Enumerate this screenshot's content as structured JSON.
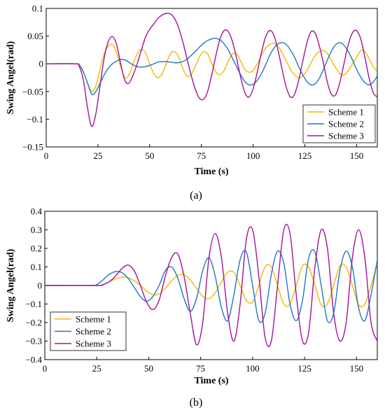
{
  "chart_data": [
    {
      "type": "line",
      "caption": "(a)",
      "xlabel": "Time (s)",
      "ylabel": "Swing Angel(rad)",
      "xlim": [
        0,
        160
      ],
      "ylim": [
        -0.15,
        0.1
      ],
      "xticks": [
        0,
        25,
        50,
        75,
        100,
        125,
        150
      ],
      "yticks": [
        -0.15,
        -0.1,
        -0.05,
        0,
        0.05,
        0.1
      ],
      "ytick_labels": [
        "−0.15",
        "−0.1",
        "−0.05",
        "0",
        "0.05",
        "0.1"
      ],
      "grid": false,
      "legend_position": "bottom-right",
      "series": [
        {
          "name": "Scheme 1",
          "color": "#f5b800",
          "x": [
            0,
            14,
            16,
            18,
            20,
            22,
            24,
            26,
            28,
            30,
            32,
            34,
            36,
            38,
            40,
            42,
            44,
            46,
            48,
            50,
            52,
            54,
            56,
            58,
            60,
            62,
            64,
            66,
            68,
            70,
            72,
            74,
            76,
            78,
            80,
            82,
            84,
            86,
            88,
            90,
            92,
            94,
            96,
            98,
            100,
            102,
            104,
            106,
            108,
            110,
            112,
            114,
            116,
            118,
            120,
            122,
            124,
            126,
            128,
            130,
            132,
            134,
            136,
            138,
            140,
            142,
            144,
            146,
            148,
            150,
            152,
            154,
            156,
            158,
            160
          ],
          "y": [
            0,
            0,
            -0.002,
            -0.015,
            -0.035,
            -0.05,
            -0.04,
            -0.01,
            0.018,
            0.032,
            0.035,
            0.02,
            -0.005,
            -0.025,
            -0.02,
            0.0,
            0.018,
            0.026,
            0.02,
            0.0,
            -0.018,
            -0.025,
            -0.018,
            0.0,
            0.018,
            0.022,
            0.012,
            -0.008,
            -0.022,
            -0.02,
            -0.005,
            0.012,
            0.022,
            0.018,
            0.0,
            -0.015,
            -0.02,
            -0.012,
            0.005,
            0.018,
            0.018,
            0.005,
            -0.01,
            -0.015,
            -0.012,
            0.0,
            0.015,
            0.028,
            0.035,
            0.037,
            0.032,
            0.02,
            0.005,
            -0.01,
            -0.02,
            -0.025,
            -0.022,
            -0.012,
            0.002,
            0.015,
            0.022,
            0.024,
            0.018,
            0.005,
            -0.008,
            -0.018,
            -0.02,
            -0.012,
            0.0,
            0.012,
            0.024,
            0.022,
            0.01,
            -0.005,
            -0.015
          ]
        },
        {
          "name": "Scheme 2",
          "color": "#1f77c4",
          "x": [
            0,
            14,
            16,
            18,
            20,
            22,
            24,
            26,
            28,
            30,
            32,
            34,
            36,
            38,
            40,
            42,
            44,
            46,
            48,
            50,
            52,
            54,
            56,
            58,
            60,
            62,
            64,
            66,
            68,
            70,
            72,
            74,
            76,
            78,
            80,
            82,
            84,
            86,
            88,
            90,
            92,
            94,
            96,
            98,
            100,
            102,
            104,
            106,
            108,
            110,
            112,
            114,
            116,
            118,
            120,
            122,
            124,
            126,
            128,
            130,
            132,
            134,
            136,
            138,
            140,
            142,
            144,
            146,
            148,
            150,
            152,
            154,
            156,
            158,
            160
          ],
          "y": [
            0,
            0,
            -0.002,
            -0.015,
            -0.035,
            -0.055,
            -0.05,
            -0.035,
            -0.02,
            -0.008,
            0.0,
            0.005,
            0.008,
            0.007,
            0.003,
            -0.002,
            -0.005,
            -0.006,
            -0.005,
            -0.003,
            0.0,
            0.003,
            0.004,
            0.004,
            0.003,
            0.002,
            0.002,
            0.004,
            0.008,
            0.015,
            0.022,
            0.03,
            0.037,
            0.042,
            0.045,
            0.046,
            0.043,
            0.036,
            0.025,
            0.01,
            -0.005,
            -0.02,
            -0.032,
            -0.038,
            -0.037,
            -0.03,
            -0.018,
            -0.002,
            0.015,
            0.028,
            0.036,
            0.038,
            0.035,
            0.025,
            0.012,
            -0.005,
            -0.02,
            -0.032,
            -0.038,
            -0.036,
            -0.026,
            -0.01,
            0.008,
            0.024,
            0.035,
            0.038,
            0.033,
            0.022,
            0.007,
            -0.01,
            -0.024,
            -0.034,
            -0.038,
            -0.033,
            -0.022
          ]
        },
        {
          "name": "Scheme 3",
          "color": "#a0129e",
          "x": [
            0,
            14,
            16,
            18,
            20,
            22,
            24,
            26,
            28,
            30,
            32,
            34,
            36,
            38,
            40,
            42,
            44,
            46,
            48,
            50,
            52,
            54,
            56,
            58,
            60,
            62,
            64,
            66,
            68,
            70,
            72,
            74,
            76,
            78,
            80,
            82,
            84,
            86,
            88,
            90,
            92,
            94,
            96,
            98,
            100,
            102,
            104,
            106,
            108,
            110,
            112,
            114,
            116,
            118,
            120,
            122,
            124,
            126,
            128,
            130,
            132,
            134,
            136,
            138,
            140,
            142,
            144,
            146,
            148,
            150,
            152,
            154,
            156,
            158,
            160
          ],
          "y": [
            0,
            0,
            -0.005,
            -0.03,
            -0.08,
            -0.113,
            -0.09,
            -0.04,
            0.01,
            0.04,
            0.049,
            0.035,
            0.0,
            -0.03,
            -0.035,
            -0.02,
            0.0,
            0.025,
            0.048,
            0.062,
            0.072,
            0.082,
            0.088,
            0.091,
            0.09,
            0.082,
            0.065,
            0.04,
            0.01,
            -0.02,
            -0.045,
            -0.062,
            -0.064,
            -0.05,
            -0.02,
            0.015,
            0.045,
            0.06,
            0.058,
            0.04,
            0.01,
            -0.025,
            -0.052,
            -0.06,
            -0.045,
            -0.015,
            0.02,
            0.048,
            0.06,
            0.052,
            0.025,
            -0.01,
            -0.042,
            -0.06,
            -0.055,
            -0.03,
            0.005,
            0.038,
            0.058,
            0.055,
            0.032,
            0.0,
            -0.035,
            -0.056,
            -0.055,
            -0.032,
            0.002,
            0.035,
            0.056,
            0.06,
            0.045,
            0.012,
            -0.025,
            -0.052,
            -0.06
          ]
        }
      ]
    },
    {
      "type": "line",
      "caption": "(b)",
      "xlabel": "Time (s)",
      "ylabel": "Swing Angel(rad)",
      "xlim": [
        0,
        160
      ],
      "ylim": [
        -0.4,
        0.4
      ],
      "xticks": [
        0,
        25,
        50,
        75,
        100,
        125,
        150
      ],
      "yticks": [
        -0.4,
        -0.3,
        -0.2,
        -0.1,
        0,
        0.1,
        0.2,
        0.3,
        0.4
      ],
      "ytick_labels": [
        "−0.4",
        "−0.3",
        "−0.2",
        "−0.1",
        "0",
        "0.1",
        "0.2",
        "0.3",
        "0.4"
      ],
      "grid": false,
      "legend_position": "bottom-left",
      "series": [
        {
          "name": "Scheme 1",
          "color": "#f5b800",
          "x": [
            0,
            25,
            28,
            31,
            34,
            37,
            40,
            43,
            46,
            49,
            52,
            55,
            58,
            61,
            64,
            67,
            70,
            73,
            76,
            79,
            82,
            85,
            88,
            91,
            94,
            97,
            100,
            103,
            106,
            109,
            112,
            115,
            118,
            121,
            124,
            127,
            130,
            133,
            136,
            139,
            142,
            145,
            148,
            151,
            154,
            157,
            160
          ],
          "y": [
            0,
            0,
            0.005,
            0.02,
            0.035,
            0.045,
            0.042,
            0.025,
            0.0,
            -0.03,
            -0.05,
            -0.045,
            -0.015,
            0.025,
            0.055,
            0.058,
            0.03,
            -0.015,
            -0.06,
            -0.072,
            -0.04,
            0.02,
            0.072,
            0.07,
            0.0,
            -0.08,
            -0.09,
            0.0,
            0.1,
            0.1,
            0.0,
            -0.1,
            -0.1,
            0.0,
            0.105,
            0.1,
            0.0,
            -0.105,
            -0.1,
            0.0,
            0.105,
            0.1,
            0.0,
            -0.105,
            -0.1,
            0.0,
            0.12
          ]
        },
        {
          "name": "Scheme 2",
          "color": "#1f77c4",
          "x": [
            0,
            22,
            25,
            28,
            31,
            34,
            37,
            40,
            43,
            46,
            49,
            52,
            55,
            58,
            61,
            64,
            67,
            70,
            73,
            76,
            79,
            82,
            85,
            88,
            91,
            94,
            97,
            100,
            103,
            106,
            109,
            112,
            115,
            118,
            121,
            124,
            127,
            130,
            133,
            136,
            139,
            142,
            145,
            148,
            151,
            154,
            157,
            160
          ],
          "y": [
            0,
            0,
            0.005,
            0.03,
            0.06,
            0.075,
            0.07,
            0.04,
            -0.01,
            -0.06,
            -0.085,
            -0.06,
            0.0,
            0.08,
            0.1,
            0.04,
            -0.07,
            -0.14,
            -0.07,
            0.08,
            0.15,
            0.05,
            -0.12,
            -0.19,
            -0.05,
            0.14,
            0.18,
            0.0,
            -0.19,
            -0.15,
            0.06,
            0.185,
            0.12,
            -0.1,
            -0.19,
            -0.08,
            0.15,
            0.18,
            0.0,
            -0.19,
            -0.15,
            0.08,
            0.185,
            0.1,
            -0.12,
            -0.19,
            -0.05,
            0.14
          ]
        },
        {
          "name": "Scheme 3",
          "color": "#a0129e",
          "x": [
            0,
            25,
            28,
            31,
            34,
            37,
            40,
            43,
            46,
            49,
            52,
            55,
            58,
            61,
            64,
            67,
            70,
            73,
            76,
            79,
            82,
            85,
            88,
            91,
            94,
            97,
            100,
            103,
            106,
            109,
            112,
            115,
            118,
            121,
            124,
            127,
            130,
            133,
            136,
            139,
            142,
            145,
            148,
            151,
            154,
            157,
            160
          ],
          "y": [
            0,
            0,
            0.005,
            0.02,
            0.05,
            0.09,
            0.11,
            0.08,
            0.0,
            -0.09,
            -0.13,
            -0.08,
            0.05,
            0.15,
            0.17,
            0.05,
            -0.15,
            -0.32,
            -0.2,
            0.15,
            0.28,
            0.15,
            -0.15,
            -0.3,
            -0.1,
            0.25,
            0.3,
            0.05,
            -0.28,
            -0.3,
            0.0,
            0.3,
            0.28,
            -0.05,
            -0.3,
            -0.25,
            0.1,
            0.3,
            0.2,
            -0.15,
            -0.3,
            -0.2,
            0.15,
            0.3,
            0.15,
            -0.2,
            -0.3
          ]
        }
      ]
    }
  ]
}
